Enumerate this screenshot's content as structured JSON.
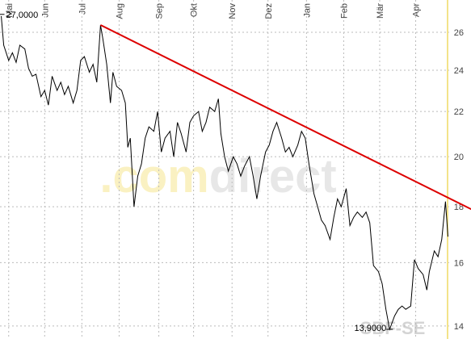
{
  "chart_data": {
    "type": "line",
    "log_scale": true,
    "grid": true,
    "x": [
      1,
      3,
      7,
      10,
      13,
      16,
      20,
      23,
      26,
      29,
      33,
      36,
      39,
      42,
      46,
      49,
      52,
      55,
      59,
      62,
      65,
      68,
      72,
      75,
      78,
      81,
      83,
      86,
      89,
      91,
      94,
      98,
      101,
      103,
      105,
      108,
      111,
      114,
      117,
      120,
      124,
      127,
      130,
      133,
      137,
      140,
      143,
      146,
      150,
      153,
      156,
      160,
      163,
      166,
      169,
      173,
      176,
      178,
      181,
      184,
      188,
      191,
      194,
      197,
      201,
      204,
      207,
      210,
      214,
      217,
      220,
      223,
      227,
      230,
      233,
      236,
      240,
      243,
      246,
      249,
      253,
      256,
      259,
      262,
      266,
      269,
      272,
      275,
      279,
      282,
      285,
      288,
      292,
      295,
      298,
      301,
      305,
      308,
      311,
      314,
      318,
      321,
      324,
      327,
      331,
      334,
      337,
      341,
      344,
      346,
      350,
      353,
      356,
      359,
      361
    ],
    "series": [
      {
        "color": "#000000",
        "values": [
          26.9,
          25.3,
          24.5,
          24.9,
          24.4,
          25.3,
          25.1,
          24.1,
          23.7,
          23.8,
          22.7,
          23.0,
          22.3,
          23.7,
          23.0,
          23.4,
          22.8,
          23.2,
          22.4,
          23.0,
          24.5,
          24.7,
          23.9,
          24.3,
          23.4,
          26.4,
          25.6,
          24.3,
          22.4,
          23.9,
          23.2,
          23.0,
          22.4,
          20.4,
          20.8,
          18.0,
          19.2,
          19.7,
          20.8,
          21.3,
          21.1,
          22.0,
          20.2,
          20.8,
          21.1,
          20.0,
          21.5,
          21.0,
          20.2,
          21.5,
          21.8,
          22.0,
          21.1,
          21.5,
          22.2,
          22.0,
          22.6,
          21.0,
          20.0,
          19.4,
          20.0,
          19.7,
          19.2,
          19.6,
          20.0,
          19.2,
          18.3,
          19.2,
          20.2,
          20.5,
          21.1,
          21.5,
          20.8,
          20.2,
          20.4,
          20.0,
          20.5,
          21.1,
          20.8,
          19.7,
          18.5,
          18.0,
          17.5,
          17.3,
          16.8,
          17.6,
          18.3,
          18.0,
          18.7,
          17.3,
          17.6,
          17.8,
          17.6,
          17.8,
          17.4,
          15.9,
          15.7,
          15.3,
          14.5,
          13.9,
          14.3,
          14.5,
          14.6,
          14.5,
          14.6,
          16.1,
          15.8,
          15.6,
          15.1,
          15.7,
          16.4,
          16.2,
          16.8,
          18.2,
          16.9
        ]
      }
    ],
    "trendline": {
      "color": "#dd0000",
      "x": [
        81,
        380
      ],
      "values": [
        26.4,
        17.9
      ]
    },
    "xlim": [
      0,
      362
    ],
    "xticks": [
      {
        "value": 7,
        "label": "Mai"
      },
      {
        "value": 36,
        "label": "Jun"
      },
      {
        "value": 66,
        "label": "Jul"
      },
      {
        "value": 96,
        "label": "Aug"
      },
      {
        "value": 128,
        "label": "Sep"
      },
      {
        "value": 156,
        "label": "Okt"
      },
      {
        "value": 187,
        "label": "Nov"
      },
      {
        "value": 216,
        "label": "Dez"
      },
      {
        "value": 247,
        "label": "Jan"
      },
      {
        "value": 277,
        "label": "Feb"
      },
      {
        "value": 306,
        "label": "Mär"
      },
      {
        "value": 335,
        "label": "Apr"
      }
    ],
    "ylim": [
      13.62,
      27.83
    ],
    "yticks": [
      14,
      16,
      18,
      20,
      22,
      24,
      26
    ],
    "annotations": [
      {
        "label": "27,0000",
        "x": 1,
        "value": 27
      },
      {
        "label": "13,9000",
        "x": 314,
        "value": 13.9
      }
    ],
    "watermark": [
      ".com",
      "direct"
    ],
    "source": "SBF-SE"
  }
}
